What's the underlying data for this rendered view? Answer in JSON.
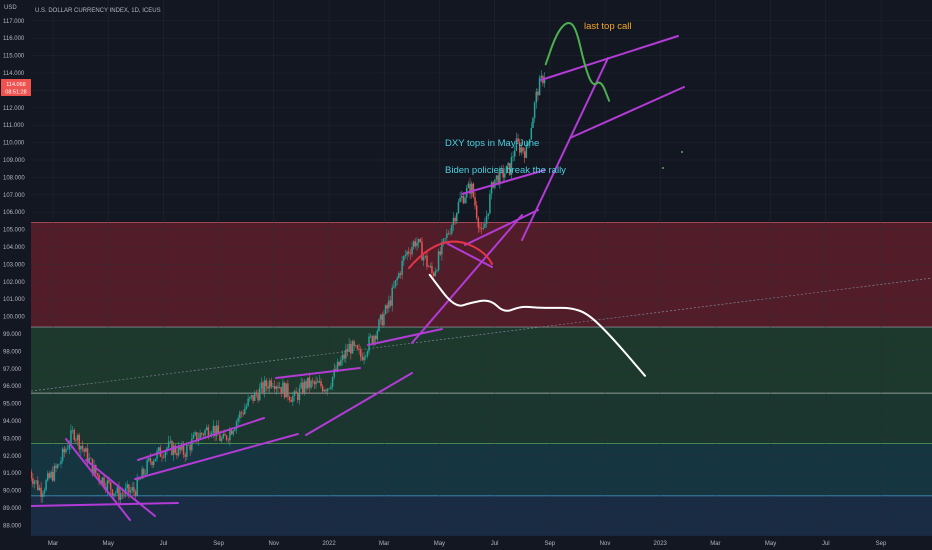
{
  "header": {
    "currency_label": "USD",
    "symbol_title": "U.S. DOLLAR CURRENCY INDEX, 1D, ICEUS"
  },
  "price_tag": {
    "price": "114.068",
    "countdown": "08:51:28"
  },
  "colors": {
    "background": "#131722",
    "up": "#26a69a",
    "down": "#ef5350",
    "trendline": "#b33bd6",
    "zone_red": "#5a1e2a",
    "zone_green": "#1f3d2f",
    "zone_teal": "#163944",
    "zone_blue": "#1c2d48",
    "projection": "#ffffff",
    "top_call": "#4caf50",
    "annotation_orange": "#f5a623",
    "annotation_cyan": "#4dd0e1"
  },
  "annotations": {
    "top_call": "last top call",
    "dxy_tops": "DXY tops in May-June",
    "biden": "Biden policies break the rally"
  },
  "chart_data": {
    "type": "candlestick",
    "title": "U.S. DOLLAR CURRENCY INDEX, 1D, ICEUS",
    "ylabel": "USD",
    "ylim": [
      88.0,
      118.0
    ],
    "y_ticks": [
      "88.000",
      "89.000",
      "90.000",
      "91.000",
      "92.000",
      "93.000",
      "94.000",
      "95.000",
      "96.000",
      "97.000",
      "98.000",
      "99.000",
      "100.000",
      "101.000",
      "102.000",
      "103.000",
      "104.000",
      "105.000",
      "106.000",
      "107.000",
      "108.000",
      "109.000",
      "110.000",
      "111.000",
      "112.000",
      "113.000",
      "114.000",
      "115.000",
      "116.000",
      "117.000"
    ],
    "x_ticks": [
      "Mar",
      "May",
      "Jul",
      "Sep",
      "Nov",
      "2022",
      "Mar",
      "May",
      "Jul",
      "Sep",
      "Nov",
      "2023",
      "Mar",
      "May",
      "Jul",
      "Sep"
    ],
    "last_price": 114.068,
    "zones": [
      {
        "name": "red zone",
        "from": 99.4,
        "to": 105.4
      },
      {
        "name": "green zone",
        "from": 95.6,
        "to": 99.4
      },
      {
        "name": "dark green zone",
        "from": 92.7,
        "to": 95.6
      },
      {
        "name": "teal zone",
        "from": 89.7,
        "to": 92.7
      },
      {
        "name": "blue zone",
        "from": 87.4,
        "to": 89.7
      }
    ],
    "price_path": [
      [
        0.0,
        91.1
      ],
      [
        0.4,
        90.0
      ],
      [
        1.0,
        91.3
      ],
      [
        1.6,
        93.4
      ],
      [
        2.4,
        91.0
      ],
      [
        3.2,
        89.8
      ],
      [
        3.8,
        90.0
      ],
      [
        4.4,
        91.8
      ],
      [
        5.0,
        92.5
      ],
      [
        5.6,
        92.2
      ],
      [
        6.0,
        93.0
      ],
      [
        6.6,
        93.7
      ],
      [
        7.0,
        92.8
      ],
      [
        7.6,
        94.3
      ],
      [
        8.0,
        95.2
      ],
      [
        8.8,
        96.4
      ],
      [
        9.6,
        95.3
      ],
      [
        10.0,
        96.1
      ],
      [
        10.8,
        96.0
      ],
      [
        11.6,
        98.3
      ],
      [
        12.0,
        97.7
      ],
      [
        12.6,
        99.3
      ],
      [
        13.0,
        100.6
      ],
      [
        13.6,
        103.5
      ],
      [
        14.0,
        104.4
      ],
      [
        14.6,
        102.4
      ],
      [
        15.0,
        104.1
      ],
      [
        15.6,
        106.7
      ],
      [
        16.0,
        107.5
      ],
      [
        16.4,
        104.5
      ],
      [
        16.8,
        107.8
      ],
      [
        17.4,
        108.5
      ],
      [
        17.6,
        109.9
      ],
      [
        18.0,
        109.5
      ],
      [
        18.4,
        113.0
      ],
      [
        18.7,
        114.1
      ]
    ],
    "projection": [
      [
        14.5,
        102.4
      ],
      [
        15.4,
        100.5
      ],
      [
        16.0,
        100.8
      ],
      [
        16.7,
        101.0
      ],
      [
        17.2,
        100.2
      ],
      [
        17.8,
        100.6
      ],
      [
        18.4,
        100.5
      ],
      [
        19.0,
        100.5
      ],
      [
        19.6,
        100.5
      ],
      [
        20.2,
        100.2
      ],
      [
        21.0,
        99.0
      ],
      [
        22.3,
        96.6
      ]
    ],
    "top_call_path": [
      [
        18.7,
        114.5
      ],
      [
        19.1,
        116.3
      ],
      [
        19.5,
        117.0
      ],
      [
        19.8,
        116.6
      ],
      [
        20.1,
        114.5
      ],
      [
        20.4,
        113.2
      ],
      [
        20.7,
        113.6
      ],
      [
        21.0,
        112.4
      ]
    ]
  }
}
